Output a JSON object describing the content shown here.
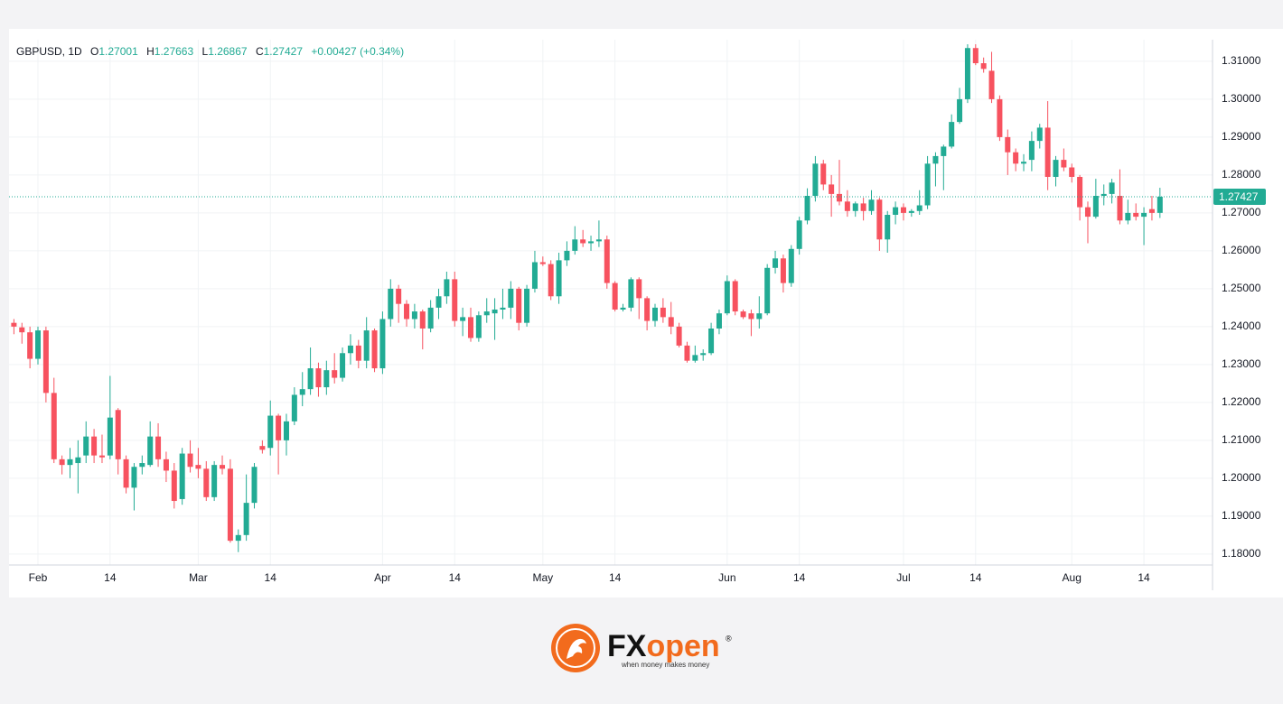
{
  "chart_data": {
    "type": "candlestick",
    "symbol": "GBPUSD, 1D",
    "ohlc_labels": [
      "O",
      "H",
      "L",
      "C"
    ],
    "change": "+0.00427 (+0.34%)",
    "up_color": "#22ab94",
    "down_color": "#f7525f",
    "grid": true,
    "ylim": [
      1.1771,
      1.3157
    ],
    "yticks": [
      {
        "value": 1.18,
        "label": "1.18000"
      },
      {
        "value": 1.19,
        "label": "1.19000"
      },
      {
        "value": 1.2,
        "label": "1.20000"
      },
      {
        "value": 1.21,
        "label": "1.21000"
      },
      {
        "value": 1.22,
        "label": "1.22000"
      },
      {
        "value": 1.23,
        "label": "1.23000"
      },
      {
        "value": 1.24,
        "label": "1.24000"
      },
      {
        "value": 1.25,
        "label": "1.25000"
      },
      {
        "value": 1.26,
        "label": "1.26000"
      },
      {
        "value": 1.27,
        "label": "1.27000"
      },
      {
        "value": 1.28,
        "label": "1.28000"
      },
      {
        "value": 1.29,
        "label": "1.29000"
      },
      {
        "value": 1.3,
        "label": "1.30000"
      },
      {
        "value": 1.31,
        "label": "1.31000"
      }
    ],
    "categories": [
      null,
      null,
      null,
      "Feb",
      null,
      null,
      null,
      null,
      null,
      null,
      null,
      null,
      "14",
      null,
      null,
      null,
      null,
      null,
      null,
      null,
      null,
      null,
      null,
      "Mar",
      null,
      null,
      null,
      null,
      null,
      null,
      null,
      null,
      "14",
      null,
      null,
      null,
      null,
      null,
      null,
      null,
      null,
      null,
      null,
      null,
      null,
      null,
      "Apr",
      null,
      null,
      null,
      null,
      null,
      null,
      null,
      null,
      "14",
      null,
      null,
      null,
      null,
      null,
      null,
      null,
      null,
      null,
      null,
      "May",
      null,
      null,
      null,
      null,
      null,
      null,
      null,
      null,
      "14",
      null,
      null,
      null,
      null,
      null,
      null,
      null,
      null,
      null,
      null,
      null,
      null,
      null,
      "Jun",
      null,
      null,
      null,
      null,
      null,
      null,
      null,
      null,
      "14",
      null,
      null,
      null,
      null,
      null,
      null,
      null,
      null,
      null,
      null,
      null,
      null,
      "Jul",
      null,
      null,
      null,
      null,
      null,
      null,
      null,
      null,
      "14",
      null,
      null,
      null,
      null,
      null,
      null,
      null,
      null,
      null,
      null,
      null,
      "Aug",
      null,
      null,
      null,
      null,
      null,
      null,
      null,
      null,
      "14",
      null,
      null
    ],
    "open": [
      1.241,
      1.2398,
      1.2385,
      1.2315,
      1.239,
      1.2225,
      1.205,
      1.2035,
      1.204,
      1.206,
      1.211,
      1.206,
      1.206,
      1.218,
      1.205,
      1.1975,
      1.203,
      1.2035,
      1.211,
      1.205,
      1.202,
      1.1945,
      1.2065,
      1.2035,
      1.2025,
      1.195,
      1.2035,
      1.2025,
      1.1835,
      1.185,
      1.1935,
      1.2085,
      1.208,
      1.2165,
      1.21,
      1.215,
      1.222,
      1.2235,
      1.229,
      1.224,
      1.2285,
      1.2265,
      1.233,
      1.235,
      1.231,
      1.239,
      1.229,
      1.242,
      1.25,
      1.246,
      1.242,
      1.244,
      1.2395,
      1.245,
      1.248,
      1.2525,
      1.2415,
      1.2425,
      1.237,
      1.243,
      1.2435,
      1.2445,
      1.245,
      1.25,
      1.241,
      1.25,
      1.257,
      1.2565,
      1.248,
      1.2575,
      1.26,
      1.263,
      1.262,
      1.2625,
      1.263,
      1.2515,
      1.2445,
      1.245,
      1.2525,
      1.2475,
      1.2415,
      1.245,
      1.2425,
      1.24,
      1.235,
      1.231,
      1.2325,
      1.233,
      1.2395,
      1.2435,
      1.252,
      1.244,
      1.2435,
      1.242,
      1.2435,
      1.2555,
      1.258,
      1.2515,
      1.2605,
      1.268,
      1.2745,
      1.283,
      1.2775,
      1.275,
      1.273,
      1.2705,
      1.2725,
      1.2705,
      1.2735,
      1.263,
      1.2695,
      1.2715,
      1.27,
      1.2705,
      1.272,
      1.283,
      1.285,
      1.2875,
      1.294,
      1.3,
      1.3135,
      1.3095,
      1.3075,
      1.3,
      1.29,
      1.286,
      1.283,
      1.284,
      1.289,
      1.2925,
      1.2795,
      1.284,
      1.282,
      1.2795,
      1.2715,
      1.269,
      1.2745,
      1.275,
      1.2745,
      1.268,
      1.27,
      1.269,
      1.271,
      1.27001
    ],
    "high": [
      1.242,
      1.241,
      1.24,
      1.24,
      1.24,
      1.2265,
      1.206,
      1.208,
      1.21,
      1.215,
      1.213,
      1.2115,
      1.227,
      1.2185,
      1.206,
      1.204,
      1.206,
      1.215,
      1.2145,
      1.207,
      1.204,
      1.208,
      1.21,
      1.208,
      1.2045,
      1.2045,
      1.206,
      1.205,
      1.1865,
      1.201,
      1.204,
      1.21,
      1.2205,
      1.217,
      1.217,
      1.224,
      1.228,
      1.2345,
      1.2305,
      1.231,
      1.233,
      1.2345,
      1.238,
      1.2365,
      1.2425,
      1.2395,
      1.244,
      1.2525,
      1.251,
      1.247,
      1.246,
      1.2445,
      1.247,
      1.25,
      1.2545,
      1.2545,
      1.245,
      1.245,
      1.244,
      1.2475,
      1.2475,
      1.25,
      1.252,
      1.2505,
      1.251,
      1.26,
      1.2585,
      1.2575,
      1.2595,
      1.2625,
      1.2665,
      1.2655,
      1.264,
      1.268,
      1.264,
      1.252,
      1.246,
      1.253,
      1.253,
      1.248,
      1.246,
      1.2475,
      1.2465,
      1.241,
      1.236,
      1.235,
      1.234,
      1.241,
      1.2445,
      1.2535,
      1.2525,
      1.2445,
      1.2445,
      1.248,
      1.2565,
      1.26,
      1.259,
      1.2615,
      1.269,
      1.2765,
      1.285,
      1.284,
      1.28,
      1.284,
      1.276,
      1.273,
      1.274,
      1.276,
      1.274,
      1.2705,
      1.273,
      1.2725,
      1.271,
      1.276,
      1.285,
      1.286,
      1.288,
      1.296,
      1.303,
      1.3145,
      1.3145,
      1.311,
      1.3125,
      1.301,
      1.292,
      1.287,
      1.2855,
      1.2915,
      1.2935,
      1.2995,
      1.285,
      1.287,
      1.283,
      1.28,
      1.273,
      1.279,
      1.2775,
      1.279,
      1.2815,
      1.2735,
      1.2725,
      1.2715,
      1.2745,
      1.27663
    ],
    "low": [
      1.238,
      1.2355,
      1.229,
      1.23,
      1.22,
      1.204,
      1.201,
      1.2,
      1.196,
      1.204,
      1.204,
      1.204,
      1.205,
      1.201,
      1.196,
      1.1915,
      1.201,
      1.203,
      1.203,
      1.199,
      1.192,
      1.193,
      1.2015,
      1.2,
      1.194,
      1.194,
      1.201,
      1.183,
      1.1805,
      1.1835,
      1.192,
      1.2065,
      1.206,
      1.201,
      1.206,
      1.214,
      1.219,
      1.222,
      1.2215,
      1.222,
      1.225,
      1.2255,
      1.23,
      1.229,
      1.229,
      1.228,
      1.2275,
      1.24,
      1.241,
      1.24,
      1.2395,
      1.234,
      1.2385,
      1.242,
      1.246,
      1.24,
      1.2375,
      1.236,
      1.236,
      1.241,
      1.2365,
      1.242,
      1.242,
      1.239,
      1.24,
      1.249,
      1.256,
      1.247,
      1.246,
      1.256,
      1.259,
      1.261,
      1.26,
      1.261,
      1.25,
      1.244,
      1.244,
      1.244,
      1.242,
      1.239,
      1.24,
      1.241,
      1.238,
      1.2345,
      1.2305,
      1.2305,
      1.231,
      1.2325,
      1.238,
      1.243,
      1.243,
      1.242,
      1.2375,
      1.2395,
      1.243,
      1.254,
      1.249,
      1.2505,
      1.259,
      1.267,
      1.273,
      1.276,
      1.269,
      1.272,
      1.269,
      1.269,
      1.268,
      1.2695,
      1.26,
      1.2595,
      1.267,
      1.268,
      1.269,
      1.2695,
      1.271,
      1.277,
      1.276,
      1.287,
      1.2935,
      1.299,
      1.309,
      1.307,
      1.299,
      1.289,
      1.28,
      1.281,
      1.281,
      1.281,
      1.287,
      1.276,
      1.277,
      1.281,
      1.278,
      1.268,
      1.262,
      1.2685,
      1.272,
      1.2725,
      1.267,
      1.267,
      1.268,
      1.2615,
      1.268,
      1.26867
    ],
    "close": [
      1.24,
      1.2385,
      1.2315,
      1.239,
      1.2225,
      1.205,
      1.2035,
      1.205,
      1.2055,
      1.211,
      1.206,
      1.2055,
      1.216,
      1.205,
      1.1975,
      1.203,
      1.204,
      1.211,
      1.205,
      1.202,
      1.194,
      1.2065,
      1.203,
      1.2025,
      1.195,
      1.2035,
      1.2025,
      1.1835,
      1.185,
      1.1935,
      1.203,
      1.2075,
      1.2165,
      1.21,
      1.215,
      1.222,
      1.2235,
      1.229,
      1.224,
      1.2285,
      1.2265,
      1.233,
      1.235,
      1.231,
      1.239,
      1.229,
      1.242,
      1.25,
      1.246,
      1.242,
      1.244,
      1.2395,
      1.245,
      1.248,
      1.2525,
      1.2415,
      1.2425,
      1.237,
      1.243,
      1.244,
      1.2445,
      1.245,
      1.25,
      1.241,
      1.25,
      1.257,
      1.2565,
      1.248,
      1.2575,
      1.26,
      1.263,
      1.262,
      1.2625,
      1.263,
      1.2515,
      1.2445,
      1.245,
      1.2525,
      1.2475,
      1.2415,
      1.245,
      1.2425,
      1.24,
      1.235,
      1.231,
      1.2325,
      1.233,
      1.2395,
      1.2435,
      1.252,
      1.244,
      1.2425,
      1.242,
      1.2435,
      1.2555,
      1.258,
      1.2515,
      1.2605,
      1.268,
      1.2745,
      1.283,
      1.2775,
      1.275,
      1.273,
      1.2705,
      1.2725,
      1.2705,
      1.2735,
      1.263,
      1.2695,
      1.2715,
      1.27,
      1.2705,
      1.272,
      1.283,
      1.285,
      1.2875,
      1.294,
      1.3,
      1.3135,
      1.3095,
      1.308,
      1.3,
      1.29,
      1.286,
      1.283,
      1.2835,
      1.289,
      1.2925,
      1.2795,
      1.284,
      1.282,
      1.2795,
      1.2715,
      1.269,
      1.2745,
      1.275,
      1.278,
      1.268,
      1.27,
      1.269,
      1.27,
      1.27,
      1.27427
    ]
  },
  "footer": {
    "brand_fx": "FX",
    "brand_open": "open",
    "registered": "®",
    "tagline": "when money makes money"
  }
}
